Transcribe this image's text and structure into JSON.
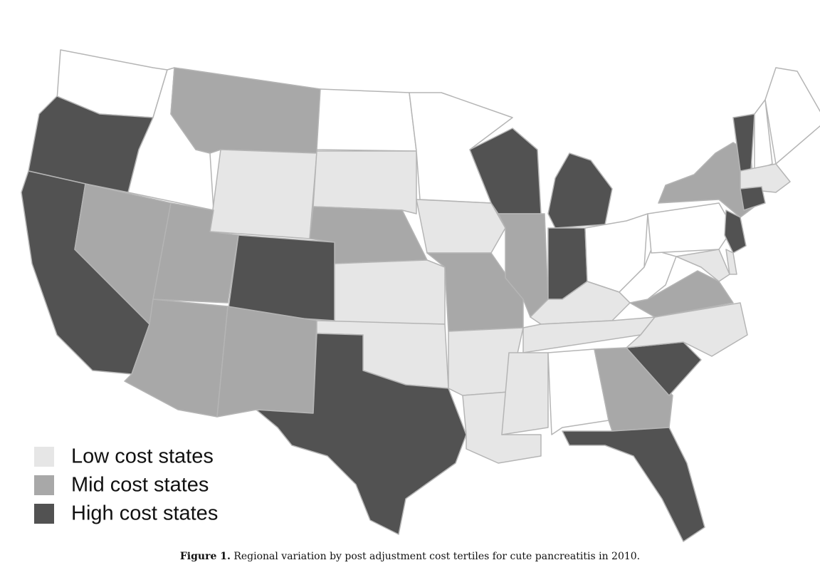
{
  "legend": {
    "items": [
      {
        "label": "Low cost states"
      },
      {
        "label": "Mid cost states"
      },
      {
        "label": "High cost states"
      }
    ]
  },
  "caption": {
    "label": "Figure 1.",
    "text": "Regional variation by post adjustment cost tertiles for cute pancreatitis in 2010."
  }
}
